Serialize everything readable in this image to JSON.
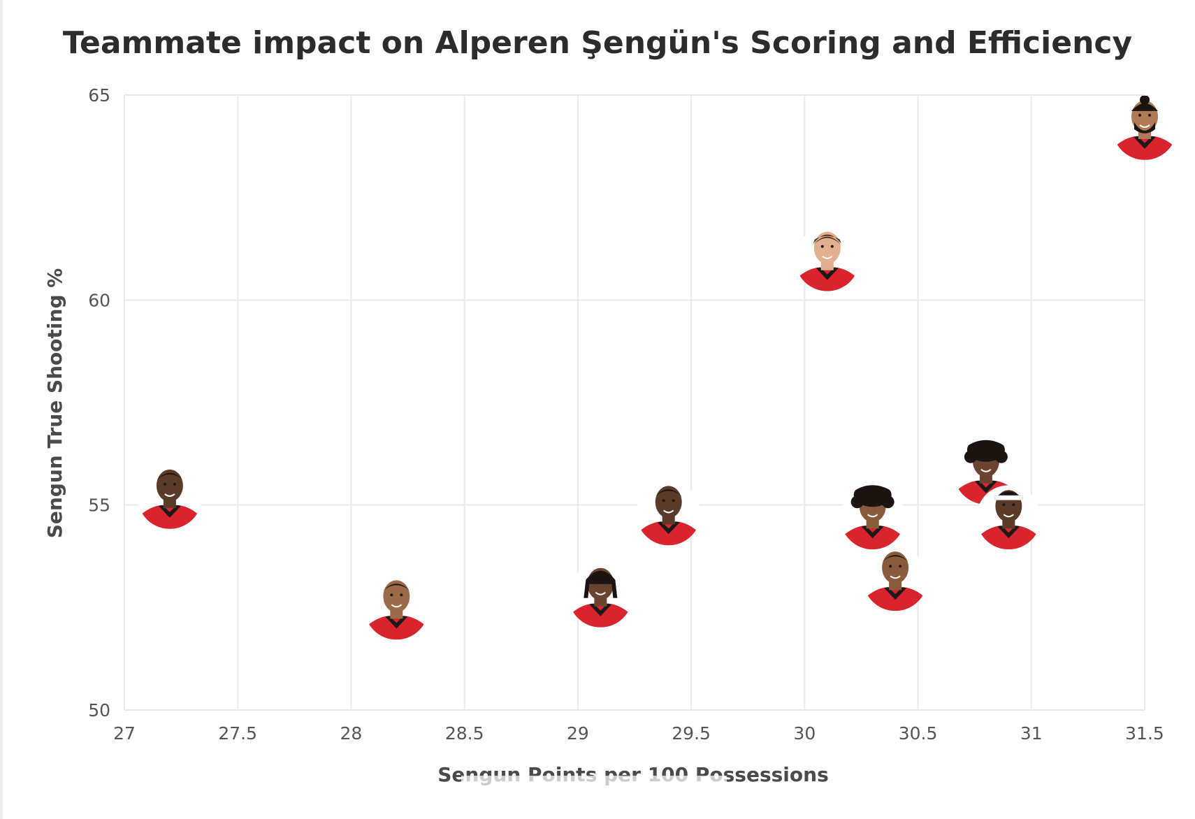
{
  "chart_data": {
    "type": "scatter",
    "title": "Teammate impact on Alperen Şengün's Scoring and Efficiency",
    "xlabel": "Sengun Points per 100 Possessions",
    "ylabel": "Sengun True Shooting %",
    "xlim": [
      27,
      31.5
    ],
    "ylim": [
      50,
      65
    ],
    "x_ticks": [
      "27",
      "27.5",
      "28",
      "28.5",
      "29",
      "29.5",
      "30",
      "30.5",
      "31",
      "31.5"
    ],
    "y_ticks": [
      "50",
      "55",
      "60",
      "65"
    ],
    "grid": true,
    "marker": "player-headshot",
    "colors": {
      "jersey": "#d9232d",
      "jersey_trim": "#1a1a1a",
      "skin_dark": "#5a3a28",
      "skin_medium": "#8a5a3c",
      "skin_light": "#d8a886",
      "hair": "#1c1410"
    },
    "points": [
      {
        "x": 27.2,
        "y": 55.2,
        "skin": "#5a3a28",
        "hair": "short"
      },
      {
        "x": 28.2,
        "y": 52.5,
        "skin": "#9a6a4a",
        "hair": "short"
      },
      {
        "x": 29.1,
        "y": 52.8,
        "skin": "#6a4430",
        "hair": "braids"
      },
      {
        "x": 29.4,
        "y": 54.8,
        "skin": "#5a3a28",
        "hair": "short"
      },
      {
        "x": 30.1,
        "y": 61.0,
        "skin": "#e2b090",
        "hair": "short-light"
      },
      {
        "x": 30.3,
        "y": 54.7,
        "skin": "#8a5a3c",
        "hair": "curly"
      },
      {
        "x": 30.4,
        "y": 53.2,
        "skin": "#8a5a3c",
        "hair": "short"
      },
      {
        "x": 30.8,
        "y": 55.8,
        "skin": "#6a4430",
        "hair": "curly"
      },
      {
        "x": 30.9,
        "y": 54.7,
        "skin": "#5a3a28",
        "hair": "headband"
      },
      {
        "x": 31.5,
        "y": 64.2,
        "skin": "#b07a56",
        "hair": "bun"
      }
    ]
  }
}
